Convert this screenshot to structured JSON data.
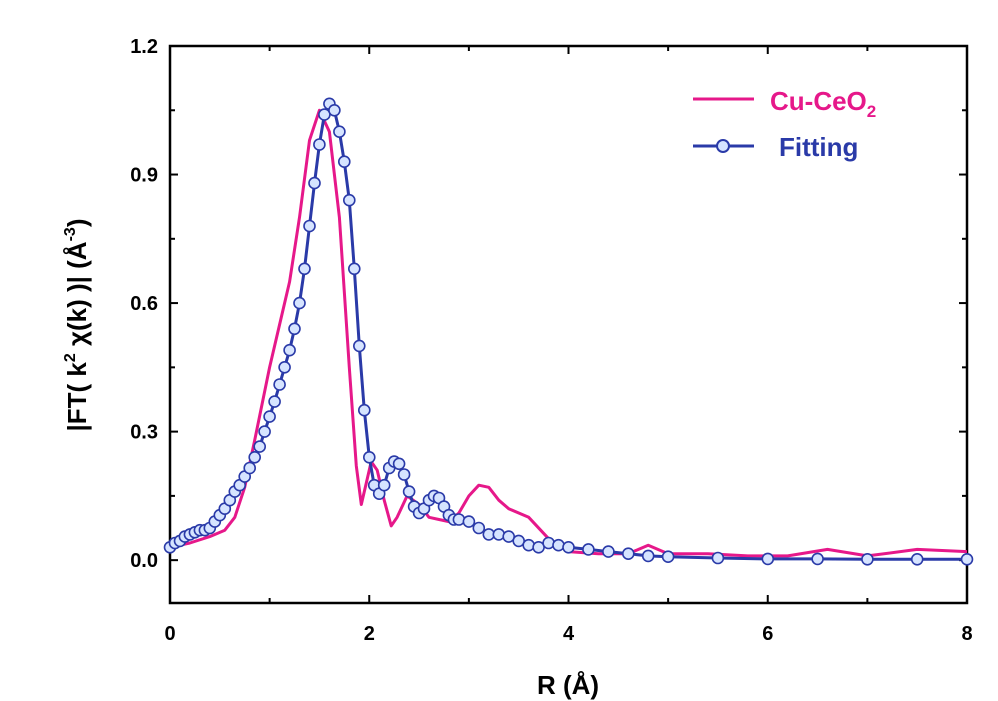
{
  "chart_data": {
    "type": "line",
    "xlabel": "R (Å)",
    "ylabel": "|FT( k2 χ(k) )| (Å-3)",
    "ylabel_parts": {
      "a": "|FT( k",
      "sup1": "2",
      "b": " χ(k) )| (",
      "c": "Å",
      "sup2": "-3",
      "d": ")"
    },
    "xlim": [
      0,
      8
    ],
    "ylim": [
      -0.1,
      1.2
    ],
    "x_ticks": [
      "0",
      "2",
      "4",
      "6",
      "8"
    ],
    "y_ticks": [
      "0.0",
      "0.3",
      "0.6",
      "0.9",
      "1.2"
    ],
    "legend_position": "top-right",
    "grid": false,
    "series": [
      {
        "name": "Cu-CeO2",
        "name_parts": {
          "base": "Cu-CeO",
          "sub": "2"
        },
        "color": "#e6188a",
        "marker": "none",
        "points": [
          [
            0,
            0.03
          ],
          [
            0.2,
            0.04
          ],
          [
            0.4,
            0.055
          ],
          [
            0.55,
            0.07
          ],
          [
            0.65,
            0.1
          ],
          [
            0.75,
            0.17
          ],
          [
            0.85,
            0.28
          ],
          [
            1.0,
            0.45
          ],
          [
            1.1,
            0.55
          ],
          [
            1.2,
            0.65
          ],
          [
            1.3,
            0.8
          ],
          [
            1.4,
            0.98
          ],
          [
            1.5,
            1.05
          ],
          [
            1.6,
            1.0
          ],
          [
            1.7,
            0.8
          ],
          [
            1.8,
            0.45
          ],
          [
            1.87,
            0.22
          ],
          [
            1.92,
            0.13
          ],
          [
            1.97,
            0.18
          ],
          [
            2.02,
            0.23
          ],
          [
            2.08,
            0.21
          ],
          [
            2.15,
            0.14
          ],
          [
            2.22,
            0.08
          ],
          [
            2.28,
            0.1
          ],
          [
            2.38,
            0.15
          ],
          [
            2.5,
            0.13
          ],
          [
            2.6,
            0.1
          ],
          [
            2.7,
            0.095
          ],
          [
            2.8,
            0.09
          ],
          [
            2.9,
            0.11
          ],
          [
            3.0,
            0.15
          ],
          [
            3.1,
            0.175
          ],
          [
            3.2,
            0.17
          ],
          [
            3.3,
            0.14
          ],
          [
            3.4,
            0.12
          ],
          [
            3.6,
            0.1
          ],
          [
            3.8,
            0.05
          ],
          [
            4.0,
            0.02
          ],
          [
            4.3,
            0.015
          ],
          [
            4.6,
            0.015
          ],
          [
            4.8,
            0.035
          ],
          [
            5.0,
            0.015
          ],
          [
            5.4,
            0.015
          ],
          [
            5.8,
            0.01
          ],
          [
            6.2,
            0.01
          ],
          [
            6.6,
            0.025
          ],
          [
            7.0,
            0.01
          ],
          [
            7.5,
            0.025
          ],
          [
            8.0,
            0.02
          ]
        ]
      },
      {
        "name": "Fitting",
        "color": "#2a3aa8",
        "marker": "circle",
        "points": [
          [
            0,
            0.03
          ],
          [
            0.05,
            0.04
          ],
          [
            0.1,
            0.045
          ],
          [
            0.15,
            0.055
          ],
          [
            0.2,
            0.06
          ],
          [
            0.25,
            0.065
          ],
          [
            0.3,
            0.07
          ],
          [
            0.35,
            0.07
          ],
          [
            0.4,
            0.075
          ],
          [
            0.45,
            0.09
          ],
          [
            0.5,
            0.105
          ],
          [
            0.55,
            0.12
          ],
          [
            0.6,
            0.14
          ],
          [
            0.65,
            0.16
          ],
          [
            0.7,
            0.175
          ],
          [
            0.75,
            0.195
          ],
          [
            0.8,
            0.215
          ],
          [
            0.85,
            0.24
          ],
          [
            0.9,
            0.265
          ],
          [
            0.95,
            0.3
          ],
          [
            1.0,
            0.335
          ],
          [
            1.05,
            0.37
          ],
          [
            1.1,
            0.41
          ],
          [
            1.15,
            0.45
          ],
          [
            1.2,
            0.49
          ],
          [
            1.25,
            0.54
          ],
          [
            1.3,
            0.6
          ],
          [
            1.35,
            0.68
          ],
          [
            1.4,
            0.78
          ],
          [
            1.45,
            0.88
          ],
          [
            1.5,
            0.97
          ],
          [
            1.55,
            1.04
          ],
          [
            1.6,
            1.065
          ],
          [
            1.65,
            1.05
          ],
          [
            1.7,
            1.0
          ],
          [
            1.75,
            0.93
          ],
          [
            1.8,
            0.84
          ],
          [
            1.85,
            0.68
          ],
          [
            1.9,
            0.5
          ],
          [
            1.95,
            0.35
          ],
          [
            2.0,
            0.24
          ],
          [
            2.05,
            0.175
          ],
          [
            2.1,
            0.155
          ],
          [
            2.15,
            0.175
          ],
          [
            2.2,
            0.215
          ],
          [
            2.25,
            0.23
          ],
          [
            2.3,
            0.225
          ],
          [
            2.35,
            0.2
          ],
          [
            2.4,
            0.16
          ],
          [
            2.45,
            0.125
          ],
          [
            2.5,
            0.11
          ],
          [
            2.55,
            0.12
          ],
          [
            2.6,
            0.14
          ],
          [
            2.65,
            0.15
          ],
          [
            2.7,
            0.145
          ],
          [
            2.75,
            0.125
          ],
          [
            2.8,
            0.105
          ],
          [
            2.85,
            0.095
          ],
          [
            2.9,
            0.095
          ],
          [
            3.0,
            0.09
          ],
          [
            3.1,
            0.075
          ],
          [
            3.2,
            0.06
          ],
          [
            3.3,
            0.06
          ],
          [
            3.4,
            0.055
          ],
          [
            3.5,
            0.045
          ],
          [
            3.6,
            0.035
          ],
          [
            3.7,
            0.03
          ],
          [
            3.8,
            0.04
          ],
          [
            3.9,
            0.035
          ],
          [
            4.0,
            0.03
          ],
          [
            4.2,
            0.025
          ],
          [
            4.4,
            0.02
          ],
          [
            4.6,
            0.015
          ],
          [
            4.8,
            0.01
          ],
          [
            5.0,
            0.008
          ],
          [
            5.5,
            0.005
          ],
          [
            6.0,
            0.003
          ],
          [
            6.5,
            0.003
          ],
          [
            7.0,
            0.002
          ],
          [
            7.5,
            0.002
          ],
          [
            8.0,
            0.002
          ]
        ]
      }
    ]
  }
}
